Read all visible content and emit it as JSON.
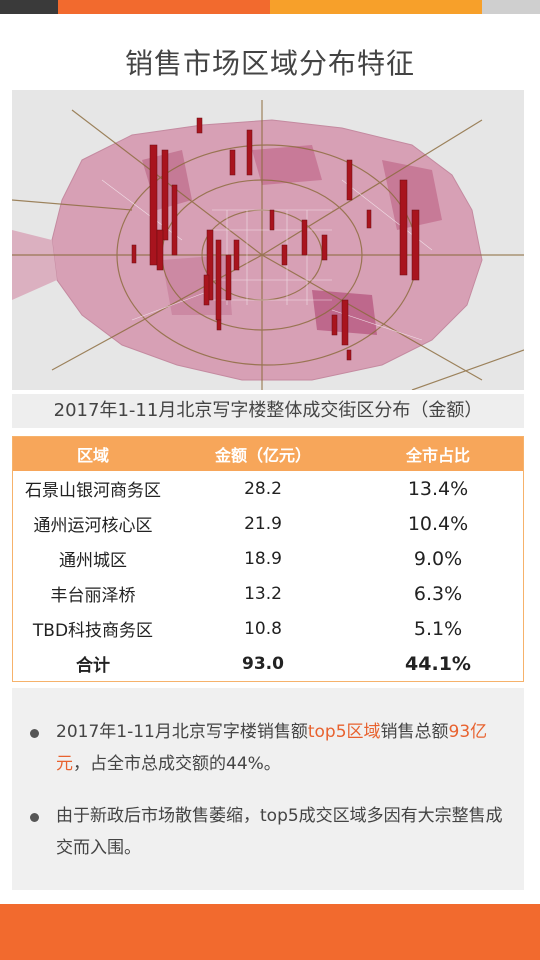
{
  "colors": {
    "orange": "#f26a2e",
    "light_orange": "#f7a65a",
    "dark": "#3a3a3a",
    "gray": "#d0d0d0"
  },
  "title": "销售市场区域分布特征",
  "map": {
    "icon": "beijing-district-map-image"
  },
  "caption": "2017年1-11月北京写字楼整体成交街区分布（金额）",
  "table": {
    "headers": [
      "区域",
      "金额（亿元）",
      "全市占比"
    ],
    "rows": [
      {
        "area": "石景山银河商务区",
        "amount": "28.2",
        "share": "13.4%"
      },
      {
        "area": "通州运河核心区",
        "amount": "21.9",
        "share": "10.4%"
      },
      {
        "area": "通州城区",
        "amount": "18.9",
        "share": "9.0%"
      },
      {
        "area": "丰台丽泽桥",
        "amount": "13.2",
        "share": "6.3%"
      },
      {
        "area": "TBD科技商务区",
        "amount": "10.8",
        "share": "5.1%"
      }
    ],
    "total": {
      "area": "合计",
      "amount": "93.0",
      "share": "44.1%"
    }
  },
  "notes": {
    "n1": {
      "a": "2017年1-11月北京写字楼销售额",
      "b": "top5区域",
      "c": "销售总额",
      "d": "93亿元",
      "e": "，占全市总成交额的44%。"
    },
    "n2": "由于新政后市场散售萎缩，top5成交区域多因有大宗整售成交而入围。"
  }
}
